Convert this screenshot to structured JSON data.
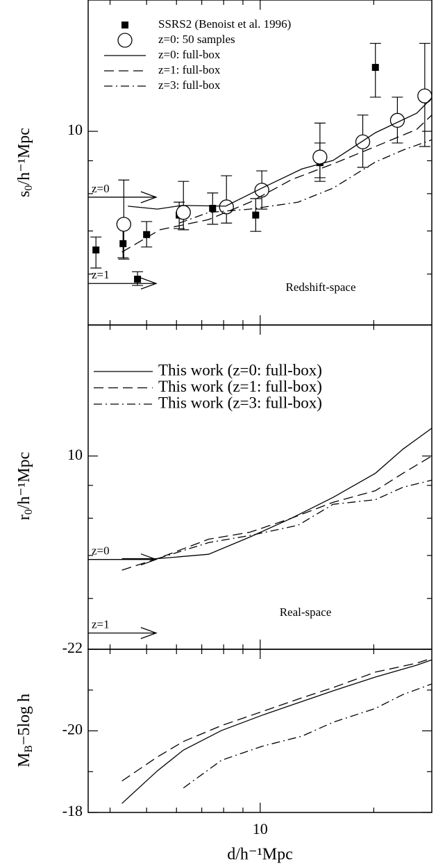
{
  "chart_data": [
    {
      "type": "line",
      "xlog": true,
      "ylog": true,
      "xlim": [
        3.5,
        28.5
      ],
      "xticks": [
        10
      ],
      "xminor_ticks": [
        4,
        5,
        6,
        7,
        8,
        9,
        20
      ],
      "ylim": [
        5,
        16
      ],
      "yticks": [
        10
      ],
      "yminor_ticks": [
        6,
        7,
        8,
        9
      ],
      "ylabel": {
        "main": "s",
        "sub": "0",
        "rest": "/h⁻¹Mpc"
      },
      "annotation": "Redshift-space",
      "color": "#000000",
      "series": [
        {
          "name": "SSRS2 (Benoist et al. 1996)",
          "style": "square",
          "x": [
            3.67,
            4.33,
            4.73,
            5.0,
            6.1,
            7.48,
            9.73,
            14.4,
            20.2
          ],
          "values": [
            6.54,
            6.69,
            5.89,
            6.91,
            7.41,
            7.59,
            7.41,
            8.94,
            12.57
          ],
          "lower": [
            6.13,
            6.36,
            5.76,
            6.61,
            7.06,
            7.17,
            6.99,
            8.36,
            11.3
          ],
          "upper": [
            6.85,
            7.2,
            6.05,
            7.24,
            7.76,
            8.02,
            7.86,
            9.59,
            13.7
          ]
        },
        {
          "name": "z=0: 50 samples",
          "style": "circle",
          "x": [
            4.35,
            6.26,
            8.14,
            10.1,
            14.4,
            18.7,
            23.1,
            27.3
          ],
          "values": [
            7.17,
            7.48,
            7.63,
            8.1,
            9.12,
            9.63,
            10.4,
            11.35
          ],
          "lower": [
            6.33,
            7.03,
            7.2,
            7.57,
            8.47,
            8.79,
            9.59,
            9.47
          ],
          "upper": [
            8.4,
            8.36,
            8.53,
            8.68,
            10.3,
            10.6,
            11.3,
            13.7
          ]
        },
        {
          "name": "z=0: full-box",
          "style": "solid",
          "x": [
            4.46,
            5.34,
            6.2,
            8.1,
            10.1,
            12.9,
            15.6,
            20.2,
            26.0,
            28.5
          ],
          "values": [
            7.65,
            7.57,
            7.67,
            7.65,
            8.16,
            8.74,
            9.01,
            9.95,
            10.67,
            11.27
          ]
        },
        {
          "name": "z=1: full-box",
          "style": "dashed",
          "x": [
            4.3,
            5.42,
            7.29,
            9.4,
            12.1,
            15.6,
            20.2,
            26.0,
            28.5
          ],
          "values": [
            6.49,
            7.03,
            7.29,
            7.76,
            8.41,
            8.9,
            9.47,
            10.07,
            10.6
          ]
        },
        {
          "name": "z=3: full-box",
          "style": "dashdot",
          "x": [
            6.1,
            7.3,
            9.4,
            12.6,
            15.6,
            20.2,
            23.9,
            28.5
          ],
          "values": [
            7.2,
            7.48,
            7.57,
            7.76,
            8.16,
            8.96,
            9.35,
            9.7
          ]
        }
      ],
      "arrows": [
        {
          "label": "z=0",
          "value": 7.9,
          "x_end": 5.3
        },
        {
          "label": "z=1",
          "value": 5.8,
          "x_end": 5.3
        }
      ]
    },
    {
      "type": "line",
      "xlog": true,
      "ylog": true,
      "xlim": [
        3.5,
        28.5
      ],
      "xticks": [
        10
      ],
      "xminor_ticks": [
        4,
        5,
        6,
        7,
        8,
        9,
        20
      ],
      "ylim": [
        5,
        16
      ],
      "yticks": [
        10
      ],
      "yminor_ticks": [
        6,
        7,
        8,
        9
      ],
      "ylabel": {
        "main": "r",
        "sub": "0",
        "rest": "/h⁻¹Mpc"
      },
      "annotation": "Real-space",
      "color": "#000000",
      "series": [
        {
          "name": "This work (z=0: full-box)",
          "style": "solid",
          "x": [
            4.3,
            5.34,
            7.3,
            9.4,
            12.1,
            15.6,
            20.2,
            23.9,
            28.5
          ],
          "values": [
            6.92,
            6.92,
            7.03,
            7.48,
            8.0,
            8.62,
            9.4,
            10.25,
            11.05
          ]
        },
        {
          "name": "This work (z=1: full-box)",
          "style": "dashed",
          "x": [
            4.3,
            5.34,
            7.3,
            9.4,
            12.1,
            15.6,
            20.2,
            23.9,
            28.5
          ],
          "values": [
            6.64,
            6.92,
            7.42,
            7.61,
            8.0,
            8.47,
            8.83,
            9.4,
            10.0
          ]
        },
        {
          "name": "This work (z=3: full-box)",
          "style": "dashdot",
          "x": [
            5.34,
            7.3,
            9.4,
            12.6,
            15.6,
            20.2,
            23.9,
            28.5
          ],
          "values": [
            6.92,
            7.33,
            7.52,
            7.8,
            8.41,
            8.55,
            8.94,
            9.17
          ]
        }
      ],
      "arrows": [
        {
          "label": "z=0",
          "value": 6.9,
          "x_end": 5.3
        },
        {
          "label": "z=1",
          "value": 5.3,
          "x_end": 5.3
        }
      ]
    },
    {
      "type": "line",
      "xlog": true,
      "ylog": false,
      "xlim": [
        3.5,
        28.5
      ],
      "xticks": [
        10
      ],
      "xminor_ticks": [
        4,
        5,
        6,
        7,
        8,
        9,
        20
      ],
      "ylim": [
        -18,
        -22
      ],
      "yticks": [
        -22,
        -20,
        -18
      ],
      "yminor_ticks": [
        -21,
        -19
      ],
      "ylabel": {
        "main": "M",
        "sub": "B",
        "rest": "−5log h"
      },
      "xlabel": "d/h⁻¹Mpc",
      "color": "#000000",
      "series": [
        {
          "style": "solid",
          "x": [
            4.3,
            5.34,
            6.26,
            7.9,
            10.1,
            12.9,
            15.6,
            20.2,
            26.0,
            28.5
          ],
          "values": [
            -18.22,
            -19.02,
            -19.53,
            -20.01,
            -20.38,
            -20.72,
            -20.98,
            -21.32,
            -21.61,
            -21.74
          ]
        },
        {
          "style": "dashed",
          "x": [
            4.3,
            5.34,
            6.26,
            7.9,
            10.1,
            12.9,
            15.6,
            20.2,
            26.0,
            28.5
          ],
          "values": [
            -18.77,
            -19.36,
            -19.74,
            -20.13,
            -20.47,
            -20.81,
            -21.06,
            -21.44,
            -21.66,
            -21.78
          ]
        },
        {
          "style": "dashdot",
          "x": [
            6.26,
            7.9,
            10.1,
            12.9,
            15.6,
            20.2,
            23.9,
            28.5
          ],
          "values": [
            -18.6,
            -19.28,
            -19.62,
            -19.87,
            -20.21,
            -20.55,
            -20.89,
            -21.15
          ]
        }
      ]
    }
  ]
}
